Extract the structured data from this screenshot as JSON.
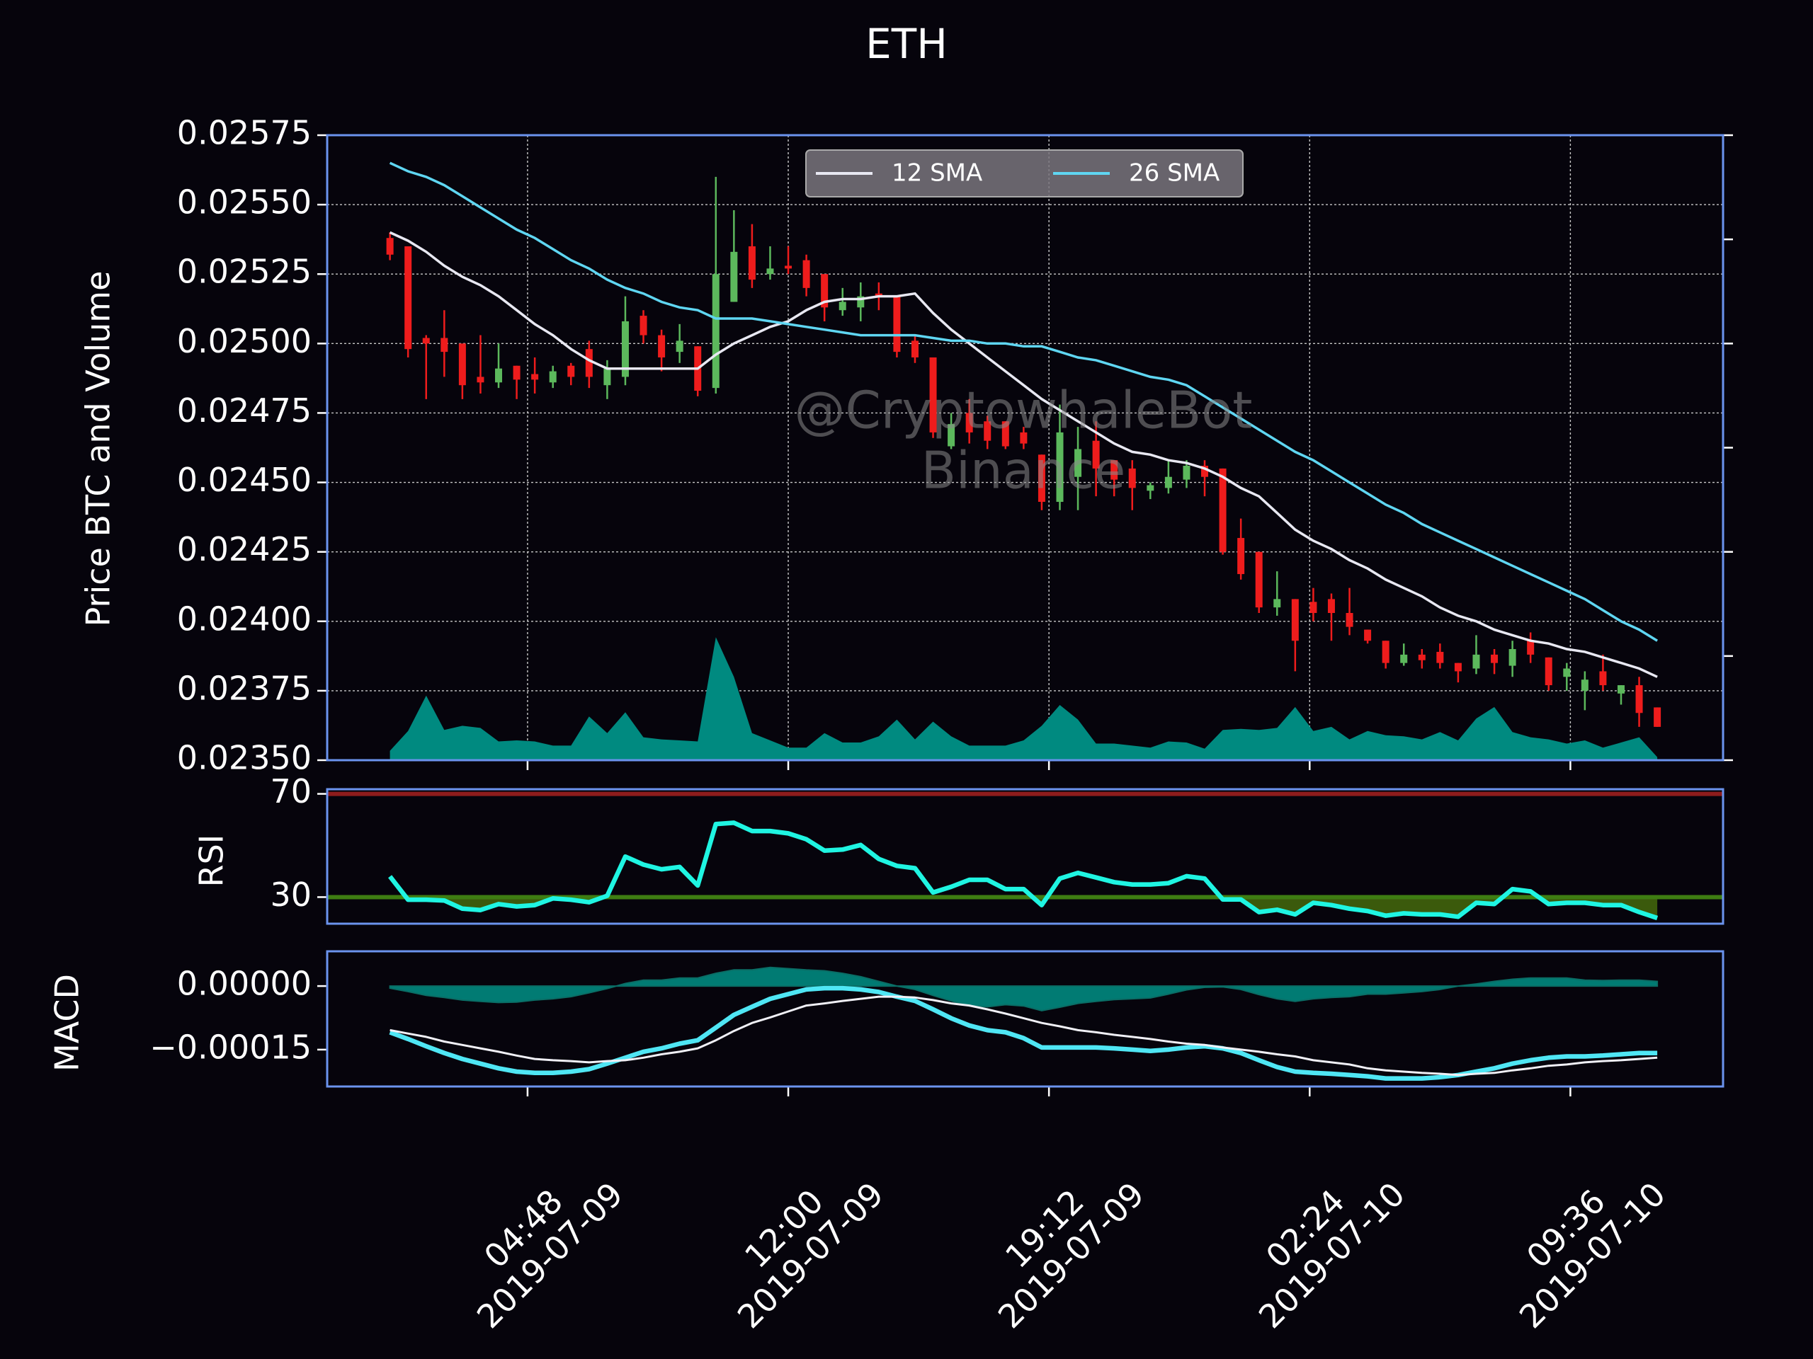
{
  "chart_data": [
    {
      "type": "candlestick",
      "title": "ETH",
      "ylabel": "Price BTC and Volume",
      "x": [
        "2019-07-09 01:00",
        "2019-07-09 01:30",
        "2019-07-09 02:00",
        "2019-07-09 02:30",
        "2019-07-09 03:00",
        "2019-07-09 03:30",
        "2019-07-09 04:00",
        "2019-07-09 04:30",
        "2019-07-09 05:00",
        "2019-07-09 05:30",
        "2019-07-09 06:00",
        "2019-07-09 06:30",
        "2019-07-09 07:00",
        "2019-07-09 07:30",
        "2019-07-09 08:00",
        "2019-07-09 08:30",
        "2019-07-09 09:00",
        "2019-07-09 09:30",
        "2019-07-09 10:00",
        "2019-07-09 10:30",
        "2019-07-09 11:00",
        "2019-07-09 11:30",
        "2019-07-09 12:00",
        "2019-07-09 12:30",
        "2019-07-09 13:00",
        "2019-07-09 13:30",
        "2019-07-09 14:00",
        "2019-07-09 14:30",
        "2019-07-09 15:00",
        "2019-07-09 15:30",
        "2019-07-09 16:00",
        "2019-07-09 16:30",
        "2019-07-09 17:00",
        "2019-07-09 17:30",
        "2019-07-09 18:00",
        "2019-07-09 18:30",
        "2019-07-09 19:00",
        "2019-07-09 19:30",
        "2019-07-09 20:00",
        "2019-07-09 20:30",
        "2019-07-09 21:00",
        "2019-07-09 21:30",
        "2019-07-09 22:00",
        "2019-07-09 22:30",
        "2019-07-09 23:00",
        "2019-07-09 23:30",
        "2019-07-10 00:00",
        "2019-07-10 00:30",
        "2019-07-10 01:00",
        "2019-07-10 01:30",
        "2019-07-10 02:00",
        "2019-07-10 02:30",
        "2019-07-10 03:00",
        "2019-07-10 03:30",
        "2019-07-10 04:00",
        "2019-07-10 04:30",
        "2019-07-10 05:00",
        "2019-07-10 05:30",
        "2019-07-10 06:00",
        "2019-07-10 06:30",
        "2019-07-10 07:00",
        "2019-07-10 07:30",
        "2019-07-10 08:00",
        "2019-07-10 08:30",
        "2019-07-10 09:00",
        "2019-07-10 09:30",
        "2019-07-10 10:00",
        "2019-07-10 10:30",
        "2019-07-10 11:00",
        "2019-07-10 11:30",
        "2019-07-10 12:00"
      ],
      "open": [
        0.02538,
        0.02535,
        0.02502,
        0.02502,
        0.025,
        0.02488,
        0.02486,
        0.02492,
        0.02489,
        0.02486,
        0.02492,
        0.02498,
        0.02485,
        0.02488,
        0.0251,
        0.02503,
        0.02497,
        0.02499,
        0.02484,
        0.02515,
        0.02535,
        0.02525,
        0.02528,
        0.0253,
        0.02525,
        0.02512,
        0.02513,
        0.02518,
        0.02517,
        0.02501,
        0.02495,
        0.02463,
        0.02475,
        0.02472,
        0.02472,
        0.02468,
        0.0246,
        0.02443,
        0.02452,
        0.02465,
        0.02458,
        0.02455,
        0.02447,
        0.02448,
        0.02451,
        0.02456,
        0.02455,
        0.0243,
        0.02425,
        0.02405,
        0.02408,
        0.02407,
        0.02408,
        0.02403,
        0.02397,
        0.02393,
        0.02385,
        0.02388,
        0.02389,
        0.02385,
        0.02383,
        0.02388,
        0.02384,
        0.02393,
        0.02387,
        0.0238,
        0.02375,
        0.02382,
        0.02374,
        0.02377,
        0.02369
      ],
      "high": [
        0.0254,
        0.02535,
        0.02503,
        0.02512,
        0.025,
        0.02503,
        0.025,
        0.02492,
        0.02495,
        0.02492,
        0.02493,
        0.02501,
        0.02494,
        0.02517,
        0.02512,
        0.02505,
        0.02507,
        0.02499,
        0.0256,
        0.02548,
        0.02543,
        0.02535,
        0.02535,
        0.02532,
        0.02525,
        0.0252,
        0.02522,
        0.02522,
        0.02517,
        0.02503,
        0.02495,
        0.02475,
        0.0248,
        0.02474,
        0.02472,
        0.0247,
        0.0246,
        0.02478,
        0.0247,
        0.02472,
        0.02458,
        0.02458,
        0.0245,
        0.02458,
        0.02458,
        0.02458,
        0.02455,
        0.02437,
        0.02425,
        0.02418,
        0.02408,
        0.02412,
        0.0241,
        0.02412,
        0.02397,
        0.02393,
        0.02392,
        0.0239,
        0.02392,
        0.02385,
        0.02395,
        0.0239,
        0.02393,
        0.02396,
        0.02387,
        0.02385,
        0.02382,
        0.02388,
        0.02377,
        0.0238,
        0.02369
      ],
      "low": [
        0.0253,
        0.02495,
        0.0248,
        0.02488,
        0.0248,
        0.02482,
        0.02484,
        0.0248,
        0.02482,
        0.02484,
        0.02485,
        0.02484,
        0.0248,
        0.02485,
        0.025,
        0.0249,
        0.02493,
        0.02481,
        0.02482,
        0.02515,
        0.0252,
        0.02523,
        0.02525,
        0.02517,
        0.02508,
        0.0251,
        0.02508,
        0.02512,
        0.02495,
        0.02493,
        0.02466,
        0.02462,
        0.02464,
        0.02462,
        0.02462,
        0.02462,
        0.0244,
        0.0244,
        0.0244,
        0.02445,
        0.02445,
        0.0244,
        0.02444,
        0.02446,
        0.02448,
        0.02445,
        0.02424,
        0.02415,
        0.02403,
        0.02402,
        0.02382,
        0.024,
        0.02393,
        0.02395,
        0.02392,
        0.02383,
        0.02384,
        0.02383,
        0.02383,
        0.02378,
        0.02381,
        0.02381,
        0.0238,
        0.02385,
        0.02375,
        0.02375,
        0.02368,
        0.02375,
        0.0237,
        0.02362,
        0.02362
      ],
      "close": [
        0.02532,
        0.02498,
        0.025,
        0.02497,
        0.02485,
        0.02486,
        0.02491,
        0.02487,
        0.02487,
        0.0249,
        0.02488,
        0.02488,
        0.02491,
        0.02508,
        0.02503,
        0.02495,
        0.02501,
        0.02483,
        0.02525,
        0.02533,
        0.02523,
        0.02527,
        0.02527,
        0.0252,
        0.02513,
        0.02515,
        0.02517,
        0.02517,
        0.02497,
        0.02495,
        0.02468,
        0.02471,
        0.02468,
        0.02465,
        0.02463,
        0.02464,
        0.02443,
        0.02468,
        0.02462,
        0.02455,
        0.02451,
        0.02448,
        0.02449,
        0.02452,
        0.02456,
        0.02452,
        0.02425,
        0.02417,
        0.02405,
        0.02408,
        0.02393,
        0.02403,
        0.02403,
        0.02398,
        0.02393,
        0.02385,
        0.02388,
        0.02386,
        0.02385,
        0.02382,
        0.02388,
        0.02385,
        0.0239,
        0.02388,
        0.02377,
        0.02383,
        0.02379,
        0.02377,
        0.02377,
        0.02367,
        0.02362
      ],
      "up_color": "#5cb85c",
      "down_color": "#ee1c1c",
      "series": [
        {
          "name": "12 SMA",
          "color": "#e8e8f2",
          "values": [
            0.0254,
            0.02537,
            0.02533,
            0.02528,
            0.02524,
            0.02521,
            0.02517,
            0.02512,
            0.02507,
            0.02503,
            0.02498,
            0.02494,
            0.02491,
            0.02491,
            0.02491,
            0.02491,
            0.02491,
            0.02491,
            0.02496,
            0.025,
            0.02503,
            0.02506,
            0.02508,
            0.02512,
            0.02515,
            0.02516,
            0.02516,
            0.02517,
            0.02517,
            0.02518,
            0.02511,
            0.02505,
            0.025,
            0.02495,
            0.0249,
            0.02485,
            0.0248,
            0.02476,
            0.02472,
            0.02468,
            0.02464,
            0.02461,
            0.0246,
            0.02458,
            0.02457,
            0.02455,
            0.02452,
            0.02448,
            0.02445,
            0.02439,
            0.02433,
            0.02429,
            0.02426,
            0.02422,
            0.02419,
            0.02415,
            0.02412,
            0.02409,
            0.02405,
            0.02402,
            0.024,
            0.02397,
            0.02395,
            0.02393,
            0.02392,
            0.0239,
            0.02389,
            0.02387,
            0.02385,
            0.02383,
            0.0238
          ]
        },
        {
          "name": "26 SMA",
          "color": "#5fd6f2",
          "values": [
            0.02565,
            0.02562,
            0.0256,
            0.02557,
            0.02553,
            0.02549,
            0.02545,
            0.02541,
            0.02538,
            0.02534,
            0.0253,
            0.02527,
            0.02523,
            0.0252,
            0.02518,
            0.02515,
            0.02513,
            0.02512,
            0.02509,
            0.02509,
            0.02509,
            0.02508,
            0.02507,
            0.02506,
            0.02505,
            0.02504,
            0.02503,
            0.02503,
            0.02503,
            0.02503,
            0.02502,
            0.02501,
            0.02501,
            0.025,
            0.025,
            0.02499,
            0.02499,
            0.02497,
            0.02495,
            0.02494,
            0.02492,
            0.0249,
            0.02488,
            0.02487,
            0.02485,
            0.02481,
            0.02477,
            0.02473,
            0.02469,
            0.02465,
            0.02461,
            0.02458,
            0.02454,
            0.0245,
            0.02446,
            0.02442,
            0.02439,
            0.02435,
            0.02432,
            0.02429,
            0.02426,
            0.02423,
            0.0242,
            0.02417,
            0.02414,
            0.02411,
            0.02408,
            0.02404,
            0.024,
            0.02397,
            0.02393
          ]
        }
      ],
      "volume": {
        "axis": "y2",
        "color": "#008a80",
        "values": [
          0.09,
          0.28,
          0.62,
          0.29,
          0.33,
          0.31,
          0.18,
          0.19,
          0.18,
          0.14,
          0.14,
          0.42,
          0.26,
          0.46,
          0.22,
          0.2,
          0.19,
          0.18,
          1.18,
          0.8,
          0.26,
          0.19,
          0.12,
          0.12,
          0.26,
          0.17,
          0.17,
          0.23,
          0.39,
          0.2,
          0.37,
          0.23,
          0.14,
          0.14,
          0.14,
          0.19,
          0.33,
          0.53,
          0.39,
          0.16,
          0.16,
          0.14,
          0.12,
          0.18,
          0.17,
          0.11,
          0.29,
          0.3,
          0.29,
          0.31,
          0.51,
          0.28,
          0.32,
          0.2,
          0.28,
          0.24,
          0.23,
          0.2,
          0.27,
          0.19,
          0.4,
          0.51,
          0.27,
          0.22,
          0.2,
          0.16,
          0.19,
          0.12,
          0.17,
          0.22,
          0.03
        ]
      },
      "xlim": [
        "2019-07-08 23:16",
        "2019-07-10 13:49"
      ],
      "xticks": [
        {
          "value": "2019-07-09 04:48",
          "label": "04:48\n2019-07-09"
        },
        {
          "value": "2019-07-09 12:00",
          "label": "12:00\n2019-07-09"
        },
        {
          "value": "2019-07-09 19:12",
          "label": "19:12\n2019-07-09"
        },
        {
          "value": "2019-07-10 02:24",
          "label": "02:24\n2019-07-10"
        },
        {
          "value": "2019-07-10 09:36",
          "label": "09:36\n2019-07-10"
        }
      ],
      "ylim": [
        0.0235,
        0.02575
      ],
      "yticks": [
        {
          "value": 0.0235,
          "label": "0.02350"
        },
        0.02375,
        {
          "value": 0.024,
          "label": "0.02400"
        },
        0.02425,
        {
          "value": 0.0245,
          "label": "0.02450"
        },
        0.02475,
        {
          "value": 0.025,
          "label": "0.02500"
        },
        0.02525,
        {
          "value": 0.0255,
          "label": "0.02550"
        },
        0.02575
      ],
      "y2lim": [
        0,
        6
      ],
      "y2ticks": [
        0,
        1,
        2,
        3,
        4,
        5,
        6
      ],
      "grid": true,
      "legend": "upper center",
      "annotations": [
        "@CryptowhaleBot",
        "Binance"
      ]
    },
    {
      "type": "line",
      "ylabel": "RSI",
      "series": [
        {
          "color": "#1ff5e2",
          "values": [
            38,
            29,
            29,
            28.7,
            25.5,
            25,
            27.3,
            26.4,
            26.9,
            29.5,
            29,
            28,
            30.5,
            45.7,
            42.6,
            40.8,
            41.7,
            34.5,
            58.3,
            58.8,
            55.6,
            55.6,
            54.7,
            52.4,
            48,
            48.4,
            50.2,
            44.8,
            42.1,
            41.2,
            31.8,
            34,
            36.7,
            36.7,
            33.1,
            33.1,
            26.9,
            37.2,
            39.4,
            37.6,
            35.8,
            34.9,
            34.9,
            35.4,
            38.1,
            37.2,
            29.1,
            29.1,
            24.2,
            25.1,
            23.3,
            27.8,
            26.9,
            25.5,
            24.6,
            22.8,
            23.7,
            23.3,
            23.3,
            22.4,
            27.8,
            27.3,
            33.1,
            32.2,
            27.3,
            27.8,
            27.8,
            26.9,
            26.9,
            24.2,
            21.9
          ]
        }
      ],
      "hlines": [
        {
          "value": 70,
          "color": "#8e1c1c"
        },
        {
          "value": 30,
          "color": "#3e7d12"
        }
      ],
      "fill_below": {
        "value": 30,
        "color": "#3b5a0c"
      },
      "ylim": [
        19.7,
        71.8
      ],
      "yticks": [
        30,
        70
      ]
    },
    {
      "type": "line",
      "ylabel": "MACD",
      "series": [
        {
          "color": "#4fe6f4",
          "values": [
            -0.000109,
            -0.000125,
            -0.000142,
            -0.000158,
            -0.000172,
            -0.000183,
            -0.000194,
            -0.000202,
            -0.000205,
            -0.000205,
            -0.000202,
            -0.000196,
            -0.000183,
            -0.000169,
            -0.000155,
            -0.000147,
            -0.000136,
            -0.000128,
            -9.8e-05,
            -6.8e-05,
            -4.9e-05,
            -3e-05,
            -1.9e-05,
            -8e-06,
            -5e-06,
            -5e-06,
            -8e-06,
            -1.4e-05,
            -2.5e-05,
            -3.5e-05,
            -5.5e-05,
            -7.6e-05,
            -9.3e-05,
            -0.000104,
            -0.000109,
            -0.000123,
            -0.000145,
            -0.000145,
            -0.000145,
            -0.000145,
            -0.000147,
            -0.00015,
            -0.000153,
            -0.00015,
            -0.000145,
            -0.000142,
            -0.000147,
            -0.000158,
            -0.000175,
            -0.000191,
            -0.000202,
            -0.000205,
            -0.000207,
            -0.00021,
            -0.000213,
            -0.000218,
            -0.000218,
            -0.000218,
            -0.000215,
            -0.00021,
            -0.000202,
            -0.000194,
            -0.000183,
            -0.000175,
            -0.000169,
            -0.000166,
            -0.000166,
            -0.000164,
            -0.000161,
            -0.000158,
            -0.000158
          ]
        },
        {
          "color": "#f0f0f6",
          "values": [
            -0.000104,
            -0.000112,
            -0.00012,
            -0.000131,
            -0.000139,
            -0.000147,
            -0.000155,
            -0.000164,
            -0.000172,
            -0.000175,
            -0.000177,
            -0.00018,
            -0.000177,
            -0.000175,
            -0.000169,
            -0.000161,
            -0.000155,
            -0.000147,
            -0.000128,
            -0.000106,
            -8.7e-05,
            -7.4e-05,
            -6e-05,
            -4.6e-05,
            -4.1e-05,
            -3.5e-05,
            -3e-05,
            -2.5e-05,
            -2.5e-05,
            -2.7e-05,
            -3.3e-05,
            -4.1e-05,
            -4.6e-05,
            -5.5e-05,
            -6.5e-05,
            -7.6e-05,
            -8.7e-05,
            -9.5e-05,
            -0.000104,
            -0.000109,
            -0.000115,
            -0.00012,
            -0.000125,
            -0.000131,
            -0.000136,
            -0.000139,
            -0.000145,
            -0.00015,
            -0.000155,
            -0.000161,
            -0.000166,
            -0.000175,
            -0.00018,
            -0.000185,
            -0.000194,
            -0.000199,
            -0.000202,
            -0.000205,
            -0.000207,
            -0.00021,
            -0.000207,
            -0.000205,
            -0.000199,
            -0.000194,
            -0.000188,
            -0.000185,
            -0.00018,
            -0.000177,
            -0.000175,
            -0.000172,
            -0.000169
          ]
        }
      ],
      "histogram": {
        "color": "#00a395",
        "values": [
          -5e-06,
          -1.3e-05,
          -2.2e-05,
          -2.7e-05,
          -3.3e-05,
          -3.6e-05,
          -3.9e-05,
          -3.8e-05,
          -3.3e-05,
          -3e-05,
          -2.5e-05,
          -1.6e-05,
          -6e-06,
          6e-06,
          1.4e-05,
          1.4e-05,
          1.9e-05,
          1.9e-05,
          3e-05,
          3.8e-05,
          3.8e-05,
          4.4e-05,
          4.1e-05,
          3.8e-05,
          3.6e-05,
          3e-05,
          2.2e-05,
          1.1e-05,
          0,
          -8e-06,
          -2.2e-05,
          -3.5e-05,
          -4.7e-05,
          -4.9e-05,
          -4.4e-05,
          -4.7e-05,
          -5.8e-05,
          -5e-05,
          -4.1e-05,
          -3.6e-05,
          -3.2e-05,
          -3e-05,
          -2.8e-05,
          -1.9e-05,
          -9e-06,
          -3e-06,
          -2e-06,
          -8e-06,
          -2e-05,
          -3e-05,
          -3.6e-05,
          -3e-05,
          -2.7e-05,
          -2.5e-05,
          -1.9e-05,
          -1.9e-05,
          -1.6e-05,
          -1.3e-05,
          -8e-06,
          0,
          5e-06,
          1.1e-05,
          1.6e-05,
          1.9e-05,
          1.9e-05,
          1.9e-05,
          1.4e-05,
          1.3e-05,
          1.4e-05,
          1.4e-05,
          1.1e-05
        ]
      },
      "ylim": [
        -0.000237,
        8.2e-05
      ],
      "yticks": [
        {
          "value": 0,
          "label": "0.00000"
        },
        {
          "value": -0.00015,
          "label": "−0.00015"
        }
      ]
    }
  ]
}
